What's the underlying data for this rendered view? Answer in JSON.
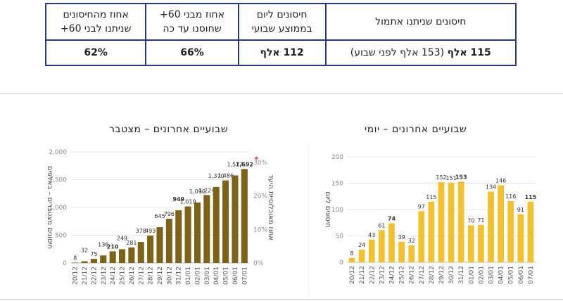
{
  "table": {
    "headers": [
      "חיסונים שניתנו אתמול",
      "חיסונים ליום\nבממוצע שבועי",
      "אחוז מבני 60+\nשחוסנו עד כה",
      "אחוז מהחיסונים\nשניתנו לבני 60+"
    ],
    "values": {
      "yesterday_main": "115 אלף",
      "yesterday_note": "(153 אלף לפני שבוע)",
      "weekly_avg": "112 אלף",
      "pct_60_vaccinated": "66%",
      "pct_to_60": "62%"
    }
  },
  "titles": {
    "cumulative": "שבועיים אחרונים – מצטבר",
    "daily": "שבועיים אחרונים – יומי"
  },
  "colors": {
    "cumulative_bar": "#7d6217",
    "daily_bar": "#f3c02e",
    "table_border": "#283a7a",
    "marker": "#d6302a"
  },
  "chart_data": [
    {
      "type": "bar",
      "title": "שבועיים אחרונים – מצטבר",
      "ylabel": "חיסונים מצטברים – באלפים",
      "y2label": "אחוז מאוכלוסיית היעד",
      "categories": [
        "20/12",
        "21/12",
        "22/12",
        "23/12",
        "24/12",
        "25/12",
        "26/12",
        "27/12",
        "28/12",
        "29/12",
        "30/12",
        "31/12",
        "01/01",
        "02/01",
        "03/01",
        "04/01",
        "05/01",
        "06/01",
        "07/01"
      ],
      "values": [
        8,
        32,
        75,
        136,
        210,
        249,
        281,
        378,
        493,
        645,
        796,
        949,
        1019,
        1090,
        1224,
        1370,
        1486,
        1577,
        1692
      ],
      "data_labels": [
        "8",
        "32",
        "75",
        "136",
        "210",
        "249",
        "281",
        "378",
        "493",
        "645",
        "796",
        "949",
        "1,019",
        "1,090",
        "1,224",
        "1,370",
        "1,486",
        "1,577",
        "1,692"
      ],
      "bold_labels": [
        4,
        11,
        18
      ],
      "marker_on": 18,
      "ylim": [
        0,
        2000
      ],
      "yticks": [
        "0",
        "500",
        "1,000",
        "1,500",
        "2,000"
      ],
      "y2ticks": [
        "0%",
        "10%",
        "20%",
        "30%"
      ]
    },
    {
      "type": "bar",
      "title": "שבועיים אחרונים – יומי",
      "ylabel": "חיסונים ליום",
      "categories": [
        "20/12",
        "21/12",
        "22/12",
        "23/12",
        "24/12",
        "25/12",
        "26/12",
        "27/12",
        "28/12",
        "29/12",
        "30/12",
        "31/12",
        "01/01",
        "02/01",
        "03/01",
        "04/01",
        "05/01",
        "06/01",
        "07/01"
      ],
      "values": [
        8,
        24,
        43,
        61,
        74,
        39,
        32,
        97,
        115,
        152,
        151,
        153,
        70,
        71,
        134,
        146,
        116,
        91,
        115
      ],
      "bold_labels": [
        4,
        11,
        18
      ],
      "ylim": [
        0,
        200
      ],
      "yticks": [
        "0",
        "50",
        "100",
        "150",
        "200"
      ]
    }
  ]
}
